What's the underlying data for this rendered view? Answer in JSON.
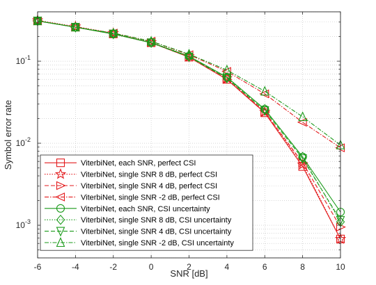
{
  "chart_data": {
    "type": "line",
    "xlabel": "SNR [dB]",
    "ylabel": "Symbol error rate",
    "x": [
      -6,
      -4,
      -2,
      0,
      2,
      4,
      6,
      8,
      10
    ],
    "xlim": [
      -6,
      10
    ],
    "ylim": [
      0.0004,
      0.4
    ],
    "y_scale": "log",
    "grid": true,
    "legend_position": "bottom-left",
    "x_ticks": [
      "-6",
      "-4",
      "-2",
      "0",
      "2",
      "4",
      "6",
      "8",
      "10"
    ],
    "y_ticks": [
      {
        "value": 0.001,
        "base": "10",
        "exp": "-3"
      },
      {
        "value": 0.01,
        "base": "10",
        "exp": "-2"
      },
      {
        "value": 0.1,
        "base": "10",
        "exp": "-1"
      }
    ],
    "series": [
      {
        "name": "ViterbiNet, each SNR, perfect CSI",
        "color": "#e31a1c",
        "dash": "solid",
        "marker": "square",
        "values": [
          0.31,
          0.26,
          0.215,
          0.168,
          0.112,
          0.06,
          0.0235,
          0.0052,
          0.00068
        ]
      },
      {
        "name": "ViterbiNet, single SNR 8 dB, perfect CSI",
        "color": "#e31a1c",
        "dash": "dotted",
        "marker": "star",
        "values": [
          0.315,
          0.265,
          0.22,
          0.17,
          0.115,
          0.062,
          0.024,
          0.0055,
          0.00068
        ]
      },
      {
        "name": "ViterbiNet, single SNR 4 dB, perfect CSI",
        "color": "#e31a1c",
        "dash": "dashed",
        "marker": "triangle-right",
        "values": [
          0.31,
          0.26,
          0.215,
          0.168,
          0.112,
          0.06,
          0.024,
          0.0058,
          0.00095
        ]
      },
      {
        "name": "ViterbiNet, single SNR -2 dB, perfect CSI",
        "color": "#e31a1c",
        "dash": "dashdot",
        "marker": "triangle-left",
        "values": [
          0.31,
          0.26,
          0.22,
          0.175,
          0.12,
          0.075,
          0.04,
          0.018,
          0.0088
        ]
      },
      {
        "name": "ViterbiNet, each SNR, CSI uncertainty",
        "color": "#1a9a1a",
        "dash": "solid",
        "marker": "circle",
        "values": [
          0.31,
          0.26,
          0.215,
          0.168,
          0.115,
          0.064,
          0.026,
          0.0068,
          0.00145
        ]
      },
      {
        "name": "ViterbiNet, single SNR 8 dB, CSI uncertainty",
        "color": "#1a9a1a",
        "dash": "dotted",
        "marker": "diamond",
        "values": [
          0.31,
          0.26,
          0.215,
          0.17,
          0.115,
          0.063,
          0.026,
          0.0068,
          0.0011
        ]
      },
      {
        "name": "ViterbiNet, single SNR 4 dB, CSI uncertainty",
        "color": "#1a9a1a",
        "dash": "dashed",
        "marker": "triangle-down",
        "values": [
          0.31,
          0.26,
          0.215,
          0.168,
          0.113,
          0.062,
          0.025,
          0.0065,
          0.00115
        ]
      },
      {
        "name": "ViterbiNet, single SNR -2 dB, CSI uncertainty",
        "color": "#1a9a1a",
        "dash": "dashdot",
        "marker": "triangle-up",
        "values": [
          0.31,
          0.26,
          0.22,
          0.175,
          0.122,
          0.078,
          0.043,
          0.021,
          0.0095
        ]
      }
    ]
  }
}
